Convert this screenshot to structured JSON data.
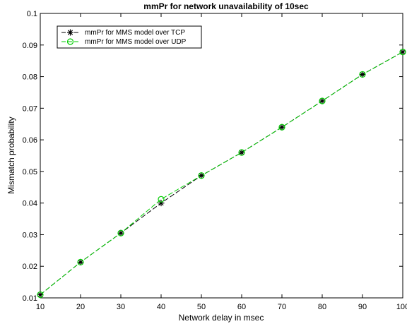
{
  "chart_data": {
    "type": "line",
    "title": "mmPr for network unavailability of 10sec",
    "xlabel": "Network delay in msec",
    "ylabel": "Mismatch probability",
    "xlim": [
      10,
      100
    ],
    "ylim": [
      0.01,
      0.1
    ],
    "x_ticks": [
      "10",
      "20",
      "30",
      "40",
      "50",
      "60",
      "70",
      "80",
      "90",
      "100"
    ],
    "y_ticks": [
      "0.01",
      "0.02",
      "0.03",
      "0.04",
      "0.05",
      "0.06",
      "0.07",
      "0.08",
      "0.09",
      "0.1"
    ],
    "grid": false,
    "legend_position": "top-left",
    "x": [
      10,
      20,
      30,
      40,
      50,
      60,
      70,
      80,
      90,
      100
    ],
    "series": [
      {
        "name": "mmPr for MMS model over TCP",
        "color": "#000000",
        "marker": "asterisk",
        "line_style": "dashed",
        "values": [
          0.011,
          0.0213,
          0.0305,
          0.04,
          0.0487,
          0.056,
          0.064,
          0.0723,
          0.0807,
          0.0878
        ]
      },
      {
        "name": "mmPr for MMS model over UDP",
        "color": "#00cc00",
        "marker": "circle",
        "line_style": "dashed",
        "values": [
          0.011,
          0.0213,
          0.0305,
          0.0412,
          0.0487,
          0.056,
          0.064,
          0.0723,
          0.0807,
          0.0878
        ]
      }
    ]
  }
}
